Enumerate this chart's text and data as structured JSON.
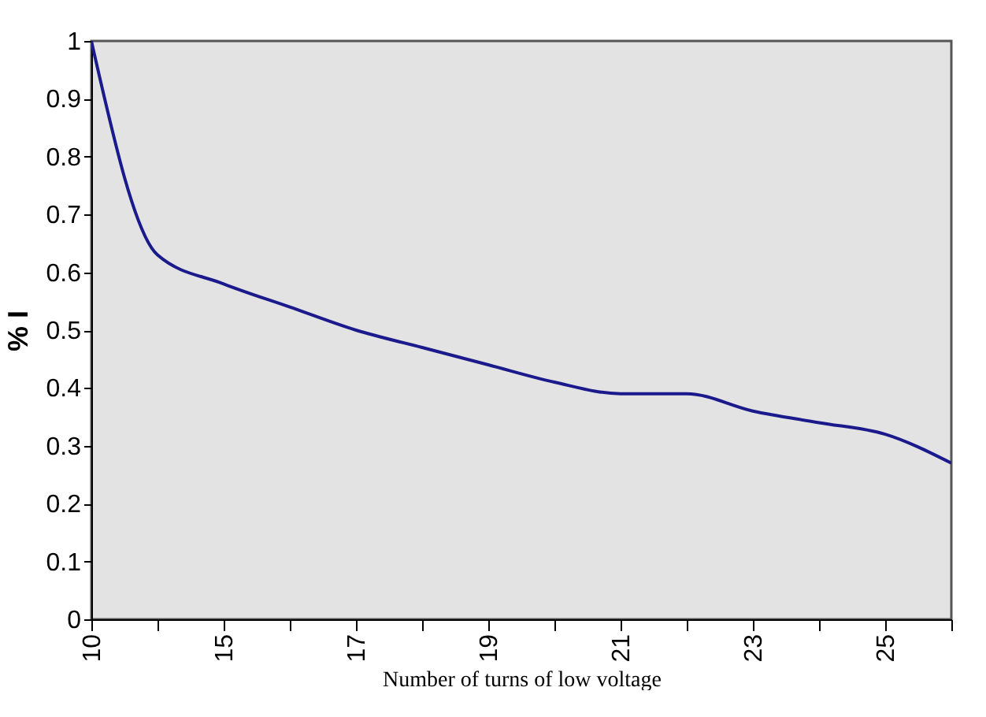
{
  "chart_data": {
    "type": "line",
    "xlabel": "Number of turns of low voltage",
    "ylabel": "% I",
    "categories": [
      "10",
      null,
      "15",
      null,
      "17",
      null,
      "19",
      null,
      "21",
      null,
      "23",
      null,
      "25",
      null
    ],
    "series": [
      {
        "color": "#1a1a8c",
        "values": [
          1.0,
          0.63,
          0.58,
          0.54,
          0.5,
          0.47,
          0.44,
          0.41,
          0.39,
          0.39,
          0.36,
          0.34,
          0.32,
          0.27
        ]
      }
    ],
    "ylim": [
      0,
      1
    ],
    "yticks": [
      0,
      0.1,
      0.2,
      0.3,
      0.4,
      0.5,
      0.6,
      0.7,
      0.8,
      0.9,
      1
    ],
    "grid": false,
    "marker": "none",
    "line_style": "solid"
  }
}
